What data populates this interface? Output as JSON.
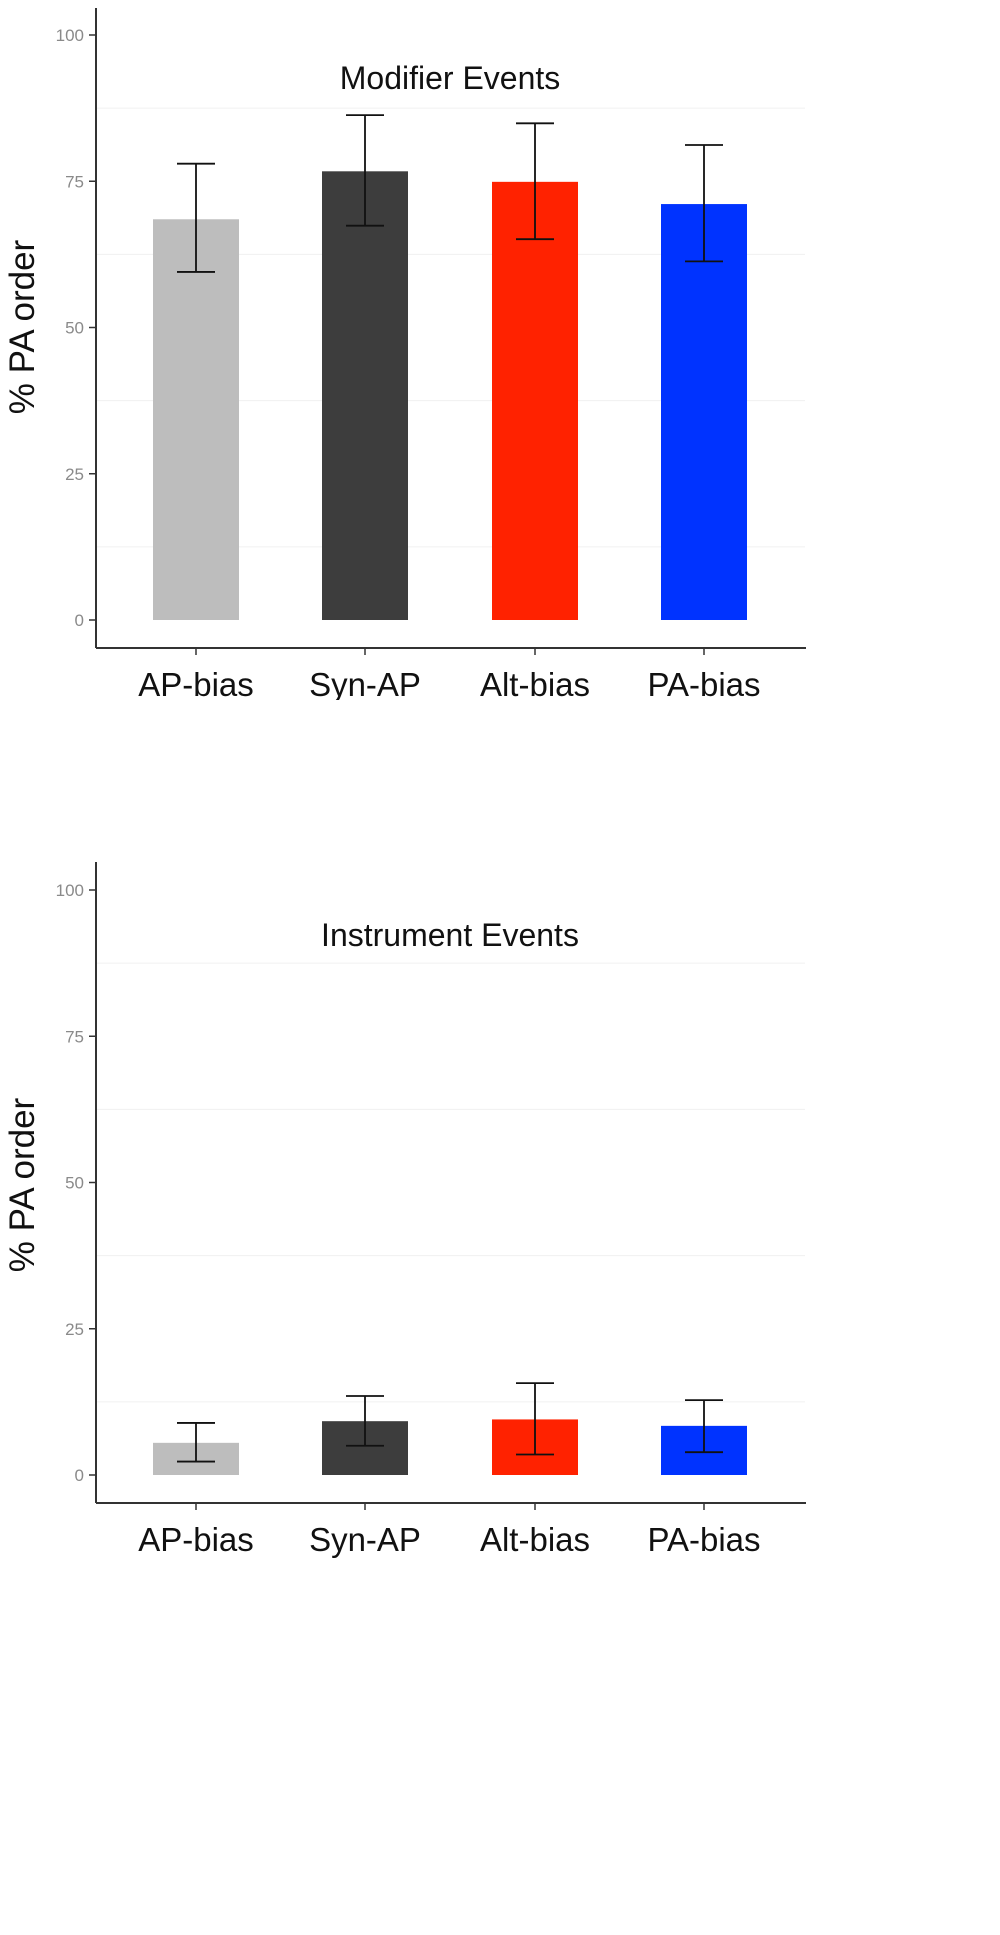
{
  "chart_data": [
    {
      "type": "bar",
      "title": "Modifier Events",
      "xlabel": "",
      "ylabel": "% PA order",
      "ylim": [
        0,
        100
      ],
      "yticks": [
        0,
        25,
        50,
        75,
        100
      ],
      "grid": false,
      "categories": [
        "AP-bias",
        "Syn-AP",
        "Alt-bias",
        "PA-bias"
      ],
      "values": [
        68.5,
        76.7,
        74.9,
        71.1
      ],
      "error_low": [
        59.5,
        67.4,
        65.1,
        61.3
      ],
      "error_high": [
        78.0,
        86.3,
        84.9,
        81.2
      ],
      "colors": [
        "#bdbdbd",
        "#3d3d3d",
        "#ff2200",
        "#0033ff"
      ]
    },
    {
      "type": "bar",
      "title": "Instrument Events",
      "xlabel": "",
      "ylabel": "% PA order",
      "ylim": [
        0,
        100
      ],
      "yticks": [
        0,
        25,
        50,
        75,
        100
      ],
      "grid": false,
      "categories": [
        "AP-bias",
        "Syn-AP",
        "Alt-bias",
        "PA-bias"
      ],
      "values": [
        5.5,
        9.2,
        9.5,
        8.4
      ],
      "error_low": [
        2.3,
        5.0,
        3.5,
        3.9
      ],
      "error_high": [
        8.9,
        13.5,
        15.7,
        12.8
      ],
      "colors": [
        "#bdbdbd",
        "#3d3d3d",
        "#ff2200",
        "#0033ff"
      ]
    }
  ]
}
